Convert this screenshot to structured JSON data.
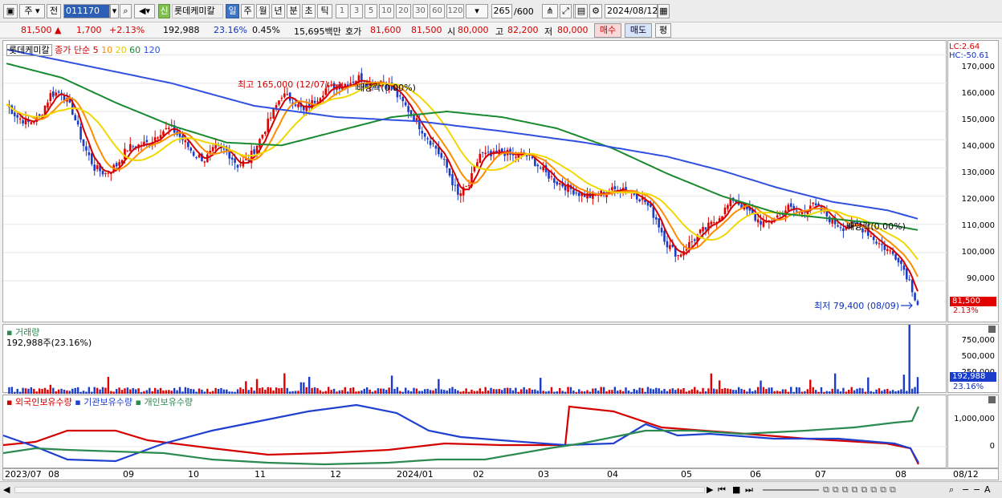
{
  "toolbar": {
    "market": "주",
    "prev_label": "전",
    "code": "011170",
    "stock_name": "롯데케미칼",
    "new_badge": "신",
    "periods": [
      "일",
      "주",
      "월",
      "년",
      "분",
      "초",
      "틱"
    ],
    "selected_period": "일",
    "intervals": [
      "1",
      "3",
      "5",
      "10",
      "20",
      "30",
      "60",
      "120"
    ],
    "count": "265",
    "count_total": "/600",
    "date": "2024/08/12"
  },
  "quote": {
    "price": "81,500",
    "change_arrow": "▲",
    "change": "1,700",
    "change_pct": "+2.13%",
    "volume": "192,988",
    "turnover": "23.16%",
    "ratio": "0.45%",
    "amount": "15,695백만",
    "ask_label": "호가",
    "ask1": "81,600",
    "ask2": "81,500",
    "open_label": "시",
    "open": "80,000",
    "high_label": "고",
    "high": "82,200",
    "low_label": "저",
    "low": "80,000",
    "buy": "매수",
    "sell": "매도",
    "eval": "평"
  },
  "price_panel": {
    "legend_name": "롯데케미칼",
    "legend_ma": "종가 단순",
    "ma_periods": [
      "5",
      "10",
      "20",
      "60",
      "120"
    ],
    "ma_colors": [
      "#d40000",
      "#ff8c00",
      "#f0d800",
      "#1a8a30",
      "#3050e0"
    ],
    "high_note": "최고 165,000 (12/07)",
    "low_note": "최저 79,400 (08/09)",
    "dividend_note_1": "배당락(0.00%)",
    "dividend_note_2": "배당락(0.00%)",
    "lc": "LC:2.64",
    "hc": "HC:-50.61",
    "current_price": "81,500",
    "current_pct": "2.13%",
    "y_ticks": [
      "170,000",
      "160,000",
      "150,000",
      "140,000",
      "130,000",
      "120,000",
      "110,000",
      "100,000",
      "90,000"
    ]
  },
  "volume_panel": {
    "title": "거래량",
    "value": "192,988주(23.16%)",
    "y_ticks": [
      "750,000",
      "500,000",
      "250,000"
    ],
    "current": "192,988",
    "current_pct": "23.16%"
  },
  "holding_panel": {
    "labels": [
      "외국인보유수량",
      "기관보유수량",
      "개인보유수량"
    ],
    "colors": [
      "#d40000",
      "#2040d0",
      "#2a8a50"
    ],
    "y_ticks": [
      "1,000,000",
      "0"
    ]
  },
  "x_axis": [
    "2023/07",
    "08",
    "09",
    "10",
    "11",
    "12",
    "2024/01",
    "02",
    "03",
    "04",
    "05",
    "06",
    "07",
    "08"
  ],
  "x_axis_end": "08/12",
  "chart_data": {
    "type": "candlestick",
    "price_ylim": [
      75000,
      175000
    ],
    "close_series": [
      [
        0,
        152500
      ],
      [
        4,
        148000
      ],
      [
        8,
        146000
      ],
      [
        12,
        148000
      ],
      [
        16,
        156000
      ],
      [
        20,
        157000
      ],
      [
        24,
        150000
      ],
      [
        28,
        138000
      ],
      [
        32,
        130000
      ],
      [
        36,
        128000
      ],
      [
        40,
        131000
      ],
      [
        44,
        137000
      ],
      [
        48,
        138000
      ],
      [
        52,
        139000
      ],
      [
        56,
        143000
      ],
      [
        60,
        144000
      ],
      [
        64,
        140000
      ],
      [
        68,
        135000
      ],
      [
        72,
        133000
      ],
      [
        76,
        137000
      ],
      [
        80,
        136000
      ],
      [
        84,
        131000
      ],
      [
        88,
        133000
      ],
      [
        92,
        140000
      ],
      [
        96,
        148000
      ],
      [
        100,
        156000
      ],
      [
        104,
        154000
      ],
      [
        108,
        150000
      ],
      [
        112,
        154000
      ],
      [
        116,
        158000
      ],
      [
        120,
        159000
      ],
      [
        124,
        160000
      ],
      [
        128,
        162000
      ],
      [
        132,
        160000
      ],
      [
        136,
        161000
      ],
      [
        140,
        158000
      ],
      [
        144,
        153000
      ],
      [
        148,
        148000
      ],
      [
        152,
        142000
      ],
      [
        156,
        137000
      ],
      [
        160,
        130000
      ],
      [
        164,
        120000
      ],
      [
        168,
        124000
      ],
      [
        172,
        135000
      ],
      [
        176,
        134000
      ],
      [
        180,
        136000
      ],
      [
        184,
        134000
      ],
      [
        188,
        135000
      ],
      [
        192,
        132000
      ],
      [
        196,
        128000
      ],
      [
        200,
        125000
      ],
      [
        204,
        123000
      ],
      [
        208,
        121000
      ],
      [
        212,
        120000
      ],
      [
        216,
        121000
      ],
      [
        220,
        122000
      ],
      [
        224,
        123000
      ],
      [
        228,
        121000
      ],
      [
        232,
        118000
      ],
      [
        236,
        112000
      ],
      [
        240,
        103000
      ],
      [
        244,
        99000
      ],
      [
        248,
        103000
      ],
      [
        252,
        107000
      ],
      [
        256,
        110000
      ],
      [
        260,
        114000
      ],
      [
        264,
        119000
      ],
      [
        268,
        116000
      ],
      [
        272,
        112000
      ],
      [
        276,
        110000
      ],
      [
        280,
        113000
      ],
      [
        284,
        116000
      ],
      [
        288,
        114000
      ],
      [
        292,
        117000
      ],
      [
        296,
        115000
      ],
      [
        300,
        111000
      ],
      [
        304,
        109000
      ],
      [
        308,
        110000
      ],
      [
        312,
        108000
      ],
      [
        316,
        104000
      ],
      [
        320,
        101000
      ],
      [
        324,
        98000
      ],
      [
        328,
        90000
      ],
      [
        331,
        81500
      ]
    ],
    "ma120_series": [
      [
        0,
        172000
      ],
      [
        30,
        166000
      ],
      [
        60,
        160000
      ],
      [
        90,
        152000
      ],
      [
        120,
        148000
      ],
      [
        150,
        146500
      ],
      [
        180,
        143000
      ],
      [
        210,
        139000
      ],
      [
        240,
        134000
      ],
      [
        260,
        129000
      ],
      [
        280,
        123000
      ],
      [
        300,
        118000
      ],
      [
        320,
        115000
      ],
      [
        331,
        112000
      ]
    ],
    "ma60_series": [
      [
        0,
        167000
      ],
      [
        20,
        162000
      ],
      [
        40,
        153000
      ],
      [
        60,
        145000
      ],
      [
        80,
        139000
      ],
      [
        100,
        138000
      ],
      [
        120,
        143000
      ],
      [
        140,
        148000
      ],
      [
        160,
        150000
      ],
      [
        180,
        148000
      ],
      [
        200,
        144000
      ],
      [
        220,
        137000
      ],
      [
        240,
        128000
      ],
      [
        260,
        120000
      ],
      [
        280,
        114000
      ],
      [
        300,
        112000
      ],
      [
        320,
        110000
      ],
      [
        331,
        108000
      ]
    ],
    "volume_ylim": [
      0,
      800000
    ],
    "volume_last": 192988,
    "volume_spike": 810000
  }
}
